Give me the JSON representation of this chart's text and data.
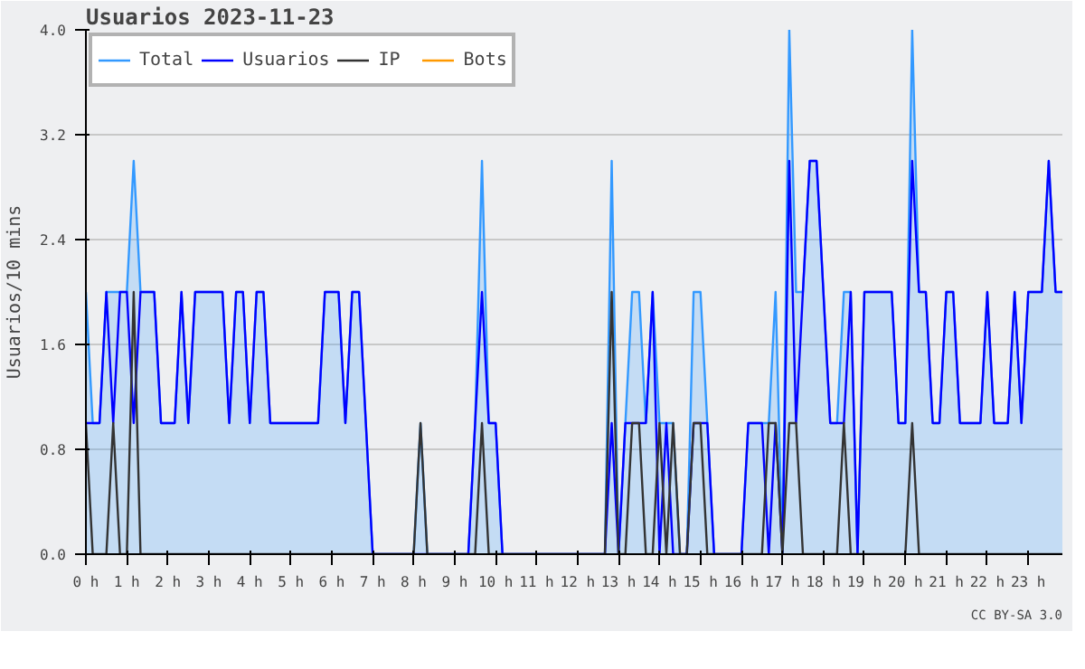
{
  "chart_data": {
    "type": "line",
    "title": "Usuarios  2023-11-23",
    "ylabel": "Usuarios/10 mins",
    "annotations": [
      "CC BY-SA 3.0"
    ],
    "x": [
      0,
      0.167,
      0.333,
      0.5,
      0.667,
      0.833,
      1,
      1.167,
      1.333,
      1.5,
      1.667,
      1.833,
      2,
      2.167,
      2.333,
      2.5,
      2.667,
      2.833,
      3,
      3.167,
      3.333,
      3.5,
      3.667,
      3.833,
      4,
      4.167,
      4.333,
      4.5,
      4.667,
      4.833,
      5,
      5.167,
      5.333,
      5.5,
      5.667,
      5.833,
      6,
      6.167,
      6.333,
      6.5,
      6.667,
      6.833,
      7,
      7.167,
      7.333,
      7.5,
      7.667,
      7.833,
      8,
      8.167,
      8.333,
      8.5,
      8.667,
      8.833,
      9,
      9.167,
      9.333,
      9.5,
      9.667,
      9.833,
      10,
      10.167,
      10.333,
      10.5,
      10.667,
      10.833,
      11,
      11.167,
      11.333,
      11.5,
      11.667,
      11.833,
      12,
      12.167,
      12.333,
      12.5,
      12.667,
      12.833,
      13,
      13.167,
      13.333,
      13.5,
      13.667,
      13.833,
      14,
      14.167,
      14.333,
      14.5,
      14.667,
      14.833,
      15,
      15.167,
      15.333,
      15.5,
      15.667,
      15.833,
      16,
      16.167,
      16.333,
      16.5,
      16.667,
      16.833,
      17,
      17.167,
      17.333,
      17.5,
      17.667,
      17.833,
      18,
      18.167,
      18.333,
      18.5,
      18.667,
      18.833,
      19,
      19.167,
      19.333,
      19.5,
      19.667,
      19.833,
      20,
      20.167,
      20.333,
      20.5,
      20.667,
      20.833,
      21,
      21.167,
      21.333,
      21.5,
      21.667,
      21.833,
      22,
      22.167,
      22.333,
      22.5,
      22.667,
      22.833,
      23,
      23.167,
      23.333,
      23.5,
      23.667,
      23.833
    ],
    "series": [
      {
        "name": "Total",
        "type": "area",
        "color": "#3399ff",
        "values": [
          2,
          1,
          1,
          2,
          2,
          2,
          2,
          3,
          2,
          2,
          2,
          1,
          1,
          1,
          2,
          1,
          2,
          2,
          2,
          2,
          2,
          1,
          2,
          2,
          1,
          2,
          2,
          1,
          1,
          1,
          1,
          1,
          1,
          1,
          1,
          2,
          2,
          2,
          1,
          2,
          2,
          1,
          0,
          0,
          0,
          0,
          0,
          0,
          0,
          1,
          0,
          0,
          0,
          0,
          0,
          0,
          0,
          1,
          3,
          1,
          1,
          0,
          0,
          0,
          0,
          0,
          0,
          0,
          0,
          0,
          0,
          0,
          0,
          0,
          0,
          0,
          0,
          3,
          0,
          1,
          2,
          2,
          1,
          2,
          1,
          1,
          1,
          0,
          0,
          2,
          2,
          1,
          0,
          0,
          0,
          0,
          0,
          1,
          1,
          1,
          1,
          2,
          0,
          4,
          2,
          2,
          3,
          3,
          2,
          1,
          1,
          2,
          2,
          0,
          2,
          2,
          2,
          2,
          2,
          1,
          1,
          4,
          2,
          2,
          1,
          1,
          2,
          2,
          1,
          1,
          1,
          1,
          2,
          1,
          1,
          1,
          2,
          1,
          2,
          2,
          2,
          3,
          2,
          2
        ]
      },
      {
        "name": "Usuarios",
        "type": "line",
        "color": "#0000ff",
        "values": [
          1,
          1,
          1,
          2,
          1,
          2,
          2,
          1,
          2,
          2,
          2,
          1,
          1,
          1,
          2,
          1,
          2,
          2,
          2,
          2,
          2,
          1,
          2,
          2,
          1,
          2,
          2,
          1,
          1,
          1,
          1,
          1,
          1,
          1,
          1,
          2,
          2,
          2,
          1,
          2,
          2,
          1,
          0,
          0,
          0,
          0,
          0,
          0,
          0,
          0,
          0,
          0,
          0,
          0,
          0,
          0,
          0,
          1,
          2,
          1,
          1,
          0,
          0,
          0,
          0,
          0,
          0,
          0,
          0,
          0,
          0,
          0,
          0,
          0,
          0,
          0,
          0,
          1,
          0,
          1,
          1,
          1,
          1,
          2,
          0,
          1,
          0,
          0,
          0,
          1,
          1,
          1,
          0,
          0,
          0,
          0,
          0,
          1,
          1,
          1,
          0,
          1,
          0,
          3,
          1,
          2,
          3,
          3,
          2,
          1,
          1,
          1,
          2,
          0,
          2,
          2,
          2,
          2,
          2,
          1,
          1,
          3,
          2,
          2,
          1,
          1,
          2,
          2,
          1,
          1,
          1,
          1,
          2,
          1,
          1,
          1,
          2,
          1,
          2,
          2,
          2,
          3,
          2,
          2
        ]
      },
      {
        "name": "IP",
        "type": "line",
        "color": "#333333",
        "values": [
          1,
          0,
          0,
          0,
          1,
          0,
          0,
          2,
          0,
          0,
          0,
          0,
          0,
          0,
          0,
          0,
          0,
          0,
          0,
          0,
          0,
          0,
          0,
          0,
          0,
          0,
          0,
          0,
          0,
          0,
          0,
          0,
          0,
          0,
          0,
          0,
          0,
          0,
          0,
          0,
          0,
          0,
          0,
          0,
          0,
          0,
          0,
          0,
          0,
          1,
          0,
          0,
          0,
          0,
          0,
          0,
          0,
          0,
          1,
          0,
          0,
          0,
          0,
          0,
          0,
          0,
          0,
          0,
          0,
          0,
          0,
          0,
          0,
          0,
          0,
          0,
          0,
          2,
          0,
          0,
          1,
          1,
          0,
          0,
          1,
          0,
          1,
          0,
          0,
          1,
          1,
          0,
          0,
          0,
          0,
          0,
          0,
          0,
          0,
          0,
          1,
          1,
          0,
          1,
          1,
          0,
          0,
          0,
          0,
          0,
          0,
          1,
          0,
          0,
          0,
          0,
          0,
          0,
          0,
          0,
          0,
          1,
          0,
          0,
          0,
          0,
          0,
          0,
          0,
          0,
          0,
          0,
          0,
          0,
          0,
          0,
          0,
          0,
          0,
          0,
          0,
          0,
          0,
          0
        ]
      },
      {
        "name": "Bots",
        "type": "line",
        "color": "#ff9900",
        "values": [
          null,
          null,
          null,
          null,
          null,
          null,
          null,
          null,
          null,
          null,
          null,
          null,
          null,
          null,
          null,
          null,
          null,
          null,
          null,
          null,
          null,
          null,
          null,
          null,
          null,
          null,
          null,
          null,
          null,
          null,
          null,
          null,
          null,
          null,
          null,
          null,
          null,
          null,
          null,
          null,
          null,
          null,
          null,
          null,
          null,
          null,
          null,
          null,
          null,
          null,
          null,
          null,
          null,
          null,
          null,
          null,
          null,
          null,
          null,
          null,
          null,
          null,
          null,
          null,
          null,
          null,
          null,
          null,
          null,
          null,
          null,
          null,
          null,
          null,
          null,
          null,
          null,
          null,
          null,
          null,
          null,
          null,
          null,
          null,
          null,
          null,
          null,
          null,
          null,
          null,
          null,
          null,
          null,
          null,
          null,
          null,
          null,
          null,
          null,
          null,
          null,
          null,
          null,
          null,
          null,
          null,
          null,
          null,
          null,
          null,
          null,
          null,
          null,
          null,
          null,
          null,
          null,
          null,
          null,
          null,
          null,
          null,
          null,
          null,
          null,
          null,
          null,
          null,
          null,
          null,
          null,
          null,
          null,
          null,
          null,
          null,
          null,
          null,
          null,
          null,
          null,
          null,
          null,
          null
        ]
      }
    ],
    "xlim": [
      0,
      23.833
    ],
    "xticks": [
      {
        "value": 0,
        "label": "0 h"
      },
      {
        "value": 1,
        "label": "1 h"
      },
      {
        "value": 2,
        "label": "2 h"
      },
      {
        "value": 3,
        "label": "3 h"
      },
      {
        "value": 4,
        "label": "4 h"
      },
      {
        "value": 5,
        "label": "5 h"
      },
      {
        "value": 6,
        "label": "6 h"
      },
      {
        "value": 7,
        "label": "7 h"
      },
      {
        "value": 8,
        "label": "8 h"
      },
      {
        "value": 9,
        "label": "9 h"
      },
      {
        "value": 10,
        "label": "10 h"
      },
      {
        "value": 11,
        "label": "11 h"
      },
      {
        "value": 12,
        "label": "12 h"
      },
      {
        "value": 13,
        "label": "13 h"
      },
      {
        "value": 14,
        "label": "14 h"
      },
      {
        "value": 15,
        "label": "15 h"
      },
      {
        "value": 16,
        "label": "16 h"
      },
      {
        "value": 17,
        "label": "17 h"
      },
      {
        "value": 18,
        "label": "18 h"
      },
      {
        "value": 19,
        "label": "19 h"
      },
      {
        "value": 20,
        "label": "20 h"
      },
      {
        "value": 21,
        "label": "21 h"
      },
      {
        "value": 22,
        "label": "22 h"
      },
      {
        "value": 23,
        "label": "23 h"
      }
    ],
    "ylim": [
      0,
      4
    ],
    "yticks": [
      {
        "value": 0,
        "label": "0.0"
      },
      {
        "value": 0.8,
        "label": "0.8"
      },
      {
        "value": 1.6,
        "label": "1.6"
      },
      {
        "value": 2.4,
        "label": "2.4"
      },
      {
        "value": 3.2,
        "label": "3.2"
      },
      {
        "value": 4,
        "label": "4.0"
      }
    ],
    "grid": "y",
    "legend": "top left",
    "marker": "none",
    "line_style": "solid"
  }
}
